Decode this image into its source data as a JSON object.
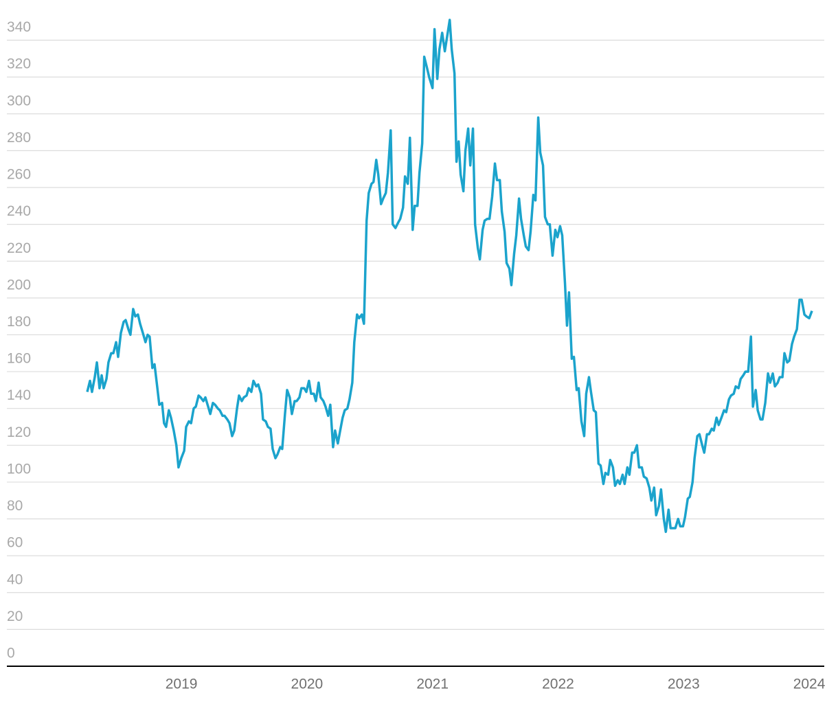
{
  "chart_data": {
    "type": "line",
    "x": [
      2018.25,
      2018.272,
      2018.288,
      2018.31,
      2018.327,
      2018.348,
      2018.365,
      2018.381,
      2018.403,
      2018.419,
      2018.441,
      2018.458,
      2018.48,
      2018.496,
      2018.518,
      2018.54,
      2018.556,
      2018.578,
      2018.594,
      2018.616,
      2018.633,
      2018.654,
      2018.671,
      2018.693,
      2018.714,
      2018.731,
      2018.747,
      2018.769,
      2018.786,
      2018.807,
      2018.824,
      2018.846,
      2018.862,
      2018.878,
      2018.9,
      2018.917,
      2018.939,
      2018.96,
      2018.977,
      2018.999,
      2019.022,
      2019.038,
      2019.06,
      2019.077,
      2019.098,
      2019.115,
      2019.137,
      2019.153,
      2019.175,
      2019.191,
      2019.213,
      2019.23,
      2019.251,
      2019.268,
      2019.29,
      2019.306,
      2019.328,
      2019.344,
      2019.366,
      2019.383,
      2019.404,
      2019.421,
      2019.443,
      2019.459,
      2019.481,
      2019.497,
      2019.519,
      2019.536,
      2019.557,
      2019.574,
      2019.596,
      2019.612,
      2019.634,
      2019.65,
      2019.672,
      2019.689,
      2019.71,
      2019.727,
      2019.749,
      2019.765,
      2019.787,
      2019.803,
      2019.825,
      2019.842,
      2019.863,
      2019.88,
      2019.902,
      2019.918,
      2019.94,
      2019.956,
      2019.978,
      2019.995,
      2020.016,
      2020.033,
      2020.055,
      2020.071,
      2020.093,
      2020.109,
      2020.131,
      2020.148,
      2020.169,
      2020.186,
      2020.208,
      2020.224,
      2020.246,
      2020.262,
      2020.284,
      2020.301,
      2020.322,
      2020.339,
      2020.361,
      2020.377,
      2020.399,
      2020.415,
      2020.437,
      2020.454,
      2020.475,
      2020.492,
      2020.514,
      2020.53,
      2020.552,
      2020.568,
      2020.59,
      2020.607,
      2020.628,
      2020.645,
      2020.667,
      2020.683,
      2020.705,
      2020.727,
      2020.743,
      2020.765,
      2020.781,
      2020.803,
      2020.82,
      2020.842,
      2020.858,
      2020.88,
      2020.896,
      2020.918,
      2020.934,
      2020.956,
      2020.973,
      2021.0,
      2021.016,
      2021.038,
      2021.055,
      2021.077,
      2021.098,
      2021.137,
      2021.153,
      2021.175,
      2021.191,
      2021.208,
      2021.224,
      2021.246,
      2021.262,
      2021.284,
      2021.301,
      2021.322,
      2021.339,
      2021.361,
      2021.377,
      2021.399,
      2021.415,
      2021.437,
      2021.454,
      2021.475,
      2021.497,
      2021.514,
      2021.536,
      2021.552,
      2021.574,
      2021.59,
      2021.612,
      2021.628,
      2021.65,
      2021.667,
      2021.689,
      2021.705,
      2021.727,
      2021.743,
      2021.765,
      2021.781,
      2021.803,
      2021.82,
      2021.842,
      2021.858,
      2021.88,
      2021.896,
      2021.918,
      2021.934,
      2021.956,
      2021.978,
      2021.995,
      2022.016,
      2022.033,
      2022.055,
      2022.071,
      2022.087,
      2022.109,
      2022.126,
      2022.148,
      2022.164,
      2022.186,
      2022.208,
      2022.224,
      2022.246,
      2022.262,
      2022.284,
      2022.301,
      2022.322,
      2022.339,
      2022.361,
      2022.377,
      2022.399,
      2022.415,
      2022.437,
      2022.454,
      2022.475,
      2022.492,
      2022.514,
      2022.53,
      2022.552,
      2022.568,
      2022.59,
      2022.607,
      2022.628,
      2022.645,
      2022.667,
      2022.683,
      2022.705,
      2022.727,
      2022.743,
      2022.765,
      2022.781,
      2022.803,
      2022.82,
      2022.842,
      2022.858,
      2022.88,
      2022.896,
      2022.918,
      2022.934,
      2022.956,
      2022.973,
      2022.995,
      2023.011,
      2023.033,
      2023.049,
      2023.071,
      2023.087,
      2023.109,
      2023.126,
      2023.148,
      2023.164,
      2023.186,
      2023.202,
      2023.224,
      2023.24,
      2023.262,
      2023.279,
      2023.301,
      2023.322,
      2023.339,
      2023.361,
      2023.377,
      2023.399,
      2023.415,
      2023.437,
      2023.454,
      2023.475,
      2023.492,
      2023.514,
      2023.536,
      2023.552,
      2023.574,
      2023.59,
      2023.612,
      2023.628,
      2023.65,
      2023.672,
      2023.689,
      2023.71,
      2023.727,
      2023.749,
      2023.765,
      2023.787,
      2023.803,
      2023.825,
      2023.842,
      2023.863,
      2023.88,
      2023.902,
      2023.923,
      2023.94,
      2023.962,
      2023.978,
      2024.0,
      2024.022
    ],
    "series": [
      {
        "color": "#1ba3cc",
        "values": [
          149,
          155,
          149,
          157,
          165,
          151,
          158,
          151,
          156,
          165,
          170,
          170,
          176,
          168,
          181,
          187,
          188,
          183,
          180,
          194,
          190,
          191,
          186,
          181,
          176,
          180,
          179,
          162,
          164,
          152,
          142,
          143,
          132,
          130,
          139,
          135,
          128,
          120,
          108,
          113,
          117,
          130,
          133,
          132,
          140,
          141,
          147,
          146,
          144,
          146,
          141,
          137,
          143,
          142,
          140,
          139,
          136,
          136,
          134,
          132,
          125,
          128,
          140,
          147,
          144,
          146,
          147,
          151,
          149,
          155,
          152,
          153,
          148,
          134,
          133,
          130,
          129,
          118,
          113,
          115,
          119,
          118,
          137,
          150,
          146,
          137,
          144,
          144,
          146,
          151,
          151,
          149,
          155,
          148,
          148,
          144,
          154,
          146,
          144,
          141,
          136,
          142,
          119,
          128,
          121,
          127,
          135,
          139,
          140,
          145,
          154,
          176,
          191,
          189,
          191,
          186,
          242,
          257,
          262,
          263,
          275,
          267,
          251,
          254,
          257,
          268,
          291,
          240,
          238,
          241,
          243,
          249,
          266,
          262,
          287,
          237,
          250,
          250,
          268,
          284,
          331,
          325,
          320,
          314,
          346,
          319,
          335,
          344,
          334,
          351,
          335,
          322,
          274,
          285,
          267,
          258,
          280,
          292,
          272,
          292,
          240,
          227,
          221,
          237,
          242,
          243,
          243,
          255,
          273,
          264,
          264,
          247,
          236,
          219,
          216,
          207,
          224,
          234,
          254,
          243,
          234,
          228,
          226,
          236,
          256,
          253,
          298,
          279,
          272,
          244,
          240,
          240,
          223,
          237,
          233,
          239,
          234,
          208,
          185,
          203,
          167,
          168,
          150,
          151,
          133,
          125,
          148,
          157,
          149,
          139,
          138,
          110,
          109,
          99,
          105,
          104,
          112,
          108,
          98,
          101,
          99,
          104,
          99,
          108,
          104,
          116,
          116,
          120,
          108,
          108,
          103,
          102,
          97,
          90,
          97,
          82,
          87,
          96,
          80,
          73,
          85,
          75,
          75,
          75,
          80,
          76,
          76,
          81,
          91,
          92,
          100,
          113,
          125,
          126,
          120,
          116,
          126,
          126,
          129,
          128,
          135,
          131,
          135,
          139,
          138,
          145,
          147,
          148,
          152,
          151,
          156,
          158,
          160,
          160,
          179,
          141,
          150,
          139,
          134,
          134,
          143,
          159,
          154,
          159,
          152,
          154,
          157,
          157,
          170,
          165,
          166,
          175,
          179,
          183,
          199,
          199,
          191,
          190,
          189,
          193
        ]
      }
    ],
    "xlim": [
      2017.61,
      2024.12
    ],
    "xticks": [
      2019,
      2020,
      2021,
      2022,
      2023,
      2024
    ],
    "ylim": [
      0,
      354
    ],
    "yticks": [
      0,
      20,
      40,
      60,
      80,
      100,
      120,
      140,
      160,
      180,
      200,
      220,
      240,
      260,
      280,
      300,
      320,
      340
    ],
    "grid": true
  }
}
